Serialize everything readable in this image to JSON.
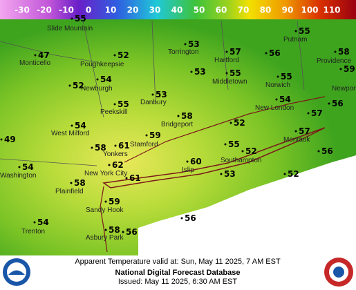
{
  "legend": {
    "labels": [
      "-30",
      "-20",
      "-10",
      "0",
      "10",
      "20",
      "30",
      "40",
      "50",
      "60",
      "70",
      "80",
      "90",
      "100",
      "110"
    ]
  },
  "places": [
    "Slide Mountain",
    "Monticello",
    "Poughkeepsie",
    "Torrington",
    "Hartford",
    "Putnam",
    "Providence",
    "Newport",
    "Newburgh",
    "Middletown",
    "Norwich",
    "Danbury",
    "Peekskill",
    "New London",
    "Bridgeport",
    "West Milford",
    "Stamford",
    "Montauk",
    "Yonkers",
    "Islip",
    "Southampton",
    "Washington",
    "New York City",
    "Plainfield",
    "Sandy Hook",
    "Trenton",
    "Asbury Park"
  ],
  "readings": [
    "55",
    "55",
    "47",
    "52",
    "53",
    "57",
    "56",
    "58",
    "59",
    "54",
    "52",
    "53",
    "55",
    "55",
    "53",
    "55",
    "54",
    "58",
    "57",
    "56",
    "52",
    "54",
    "57",
    "49",
    "59",
    "58",
    "61",
    "55",
    "52",
    "56",
    "60",
    "62",
    "54",
    "53",
    "52",
    "61",
    "58",
    "59",
    "56",
    "54",
    "58",
    "56"
  ],
  "footer": {
    "valid": "Apparent Temperature valid at: Sun, May 11 2025, 7 AM EST",
    "source": "National Digital Forecast Database",
    "issued": "Issued: May 11 2025, 6:30 AM EST"
  }
}
